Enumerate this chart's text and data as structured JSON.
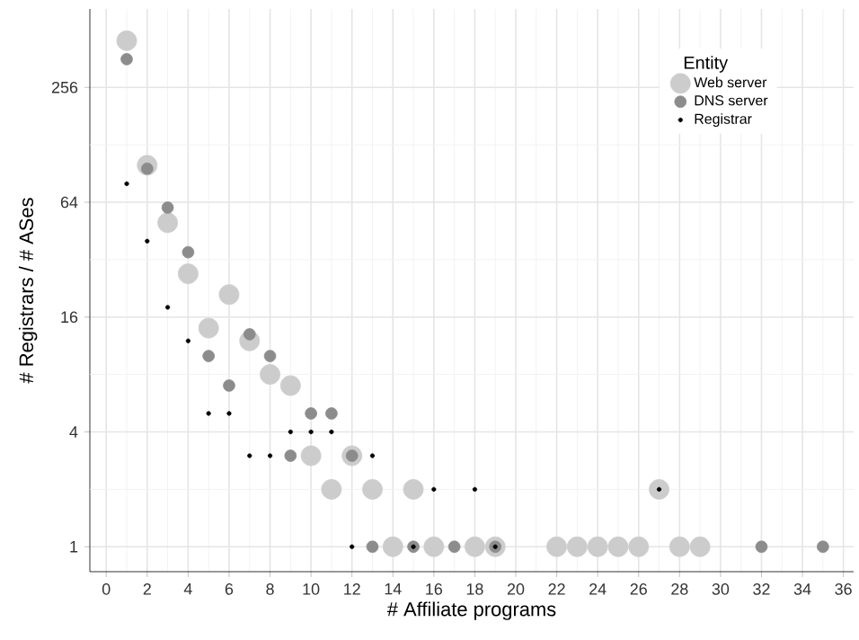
{
  "chart_data": {
    "type": "scatter",
    "xlabel": "# Affiliate programs",
    "ylabel": "# Registrars / # ASes",
    "legend_title": "Entity",
    "legend": "top right",
    "grid": true,
    "log": "y",
    "xlim": [
      -0.8,
      36.5
    ],
    "xticks": [
      0,
      2,
      4,
      6,
      8,
      10,
      12,
      14,
      16,
      18,
      20,
      22,
      24,
      26,
      28,
      30,
      32,
      34,
      36
    ],
    "ylim": [
      0.74,
      660
    ],
    "yticks": [
      1,
      4,
      16,
      64,
      256
    ],
    "series": [
      {
        "name": "Web server",
        "color": "#cccccc",
        "x": [
          1,
          2,
          3,
          4,
          5,
          6,
          7,
          8,
          9,
          10,
          11,
          12,
          13,
          14,
          15,
          16,
          18,
          19,
          22,
          23,
          24,
          25,
          26,
          27,
          28,
          29
        ],
        "values": [
          450,
          100,
          50,
          27,
          14,
          21,
          12,
          8,
          7,
          3,
          2,
          3,
          2,
          1,
          2,
          1,
          1,
          1,
          1,
          1,
          1,
          1,
          1,
          2,
          1,
          1
        ]
      },
      {
        "name": "DNS server",
        "color": "#8c8c8c",
        "x": [
          1,
          2,
          3,
          4,
          5,
          6,
          7,
          8,
          9,
          10,
          11,
          12,
          13,
          15,
          17,
          19,
          32,
          35
        ],
        "values": [
          360,
          96,
          60,
          35,
          10,
          7,
          13,
          10,
          3,
          5,
          5,
          3,
          1,
          1,
          1,
          1,
          1,
          1
        ]
      },
      {
        "name": "Registrar",
        "color": "#000000",
        "x": [
          1,
          2,
          3,
          4,
          5,
          6,
          7,
          8,
          9,
          10,
          11,
          12,
          13,
          15,
          16,
          18,
          19,
          27
        ],
        "values": [
          80,
          40,
          18,
          12,
          5,
          5,
          3,
          3,
          4,
          4,
          4,
          1,
          3,
          1,
          2,
          2,
          1,
          2
        ]
      }
    ]
  }
}
